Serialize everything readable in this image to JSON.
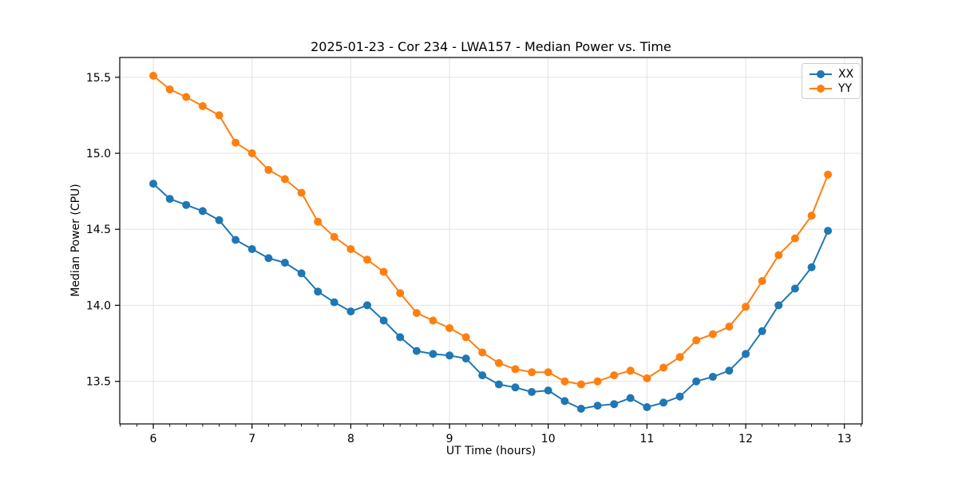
{
  "chart_data": {
    "type": "line",
    "title": "2025-01-23 - Cor 234 - LWA157 - Median Power vs. Time",
    "xlabel": "UT Time (hours)",
    "ylabel": "Median Power (CPU)",
    "xlim": [
      5.66,
      13.18
    ],
    "ylim": [
      13.22,
      15.63
    ],
    "xticks": [
      6,
      7,
      8,
      9,
      10,
      11,
      12,
      13
    ],
    "xtick_labels": [
      "6",
      "7",
      "8",
      "9",
      "10",
      "11",
      "12",
      "13"
    ],
    "yticks": [
      13.5,
      14.0,
      14.5,
      15.0,
      15.5
    ],
    "ytick_labels": [
      "13.5",
      "14.0",
      "14.5",
      "15.0",
      "15.5"
    ],
    "x_minor_divisions": 6,
    "grid": true,
    "grid_color": "#e3e3e3",
    "marker": "circle",
    "legend_position": "upper right",
    "x": [
      6.0,
      6.167,
      6.333,
      6.5,
      6.667,
      6.833,
      7.0,
      7.167,
      7.333,
      7.5,
      7.667,
      7.833,
      8.0,
      8.167,
      8.333,
      8.5,
      8.667,
      8.833,
      9.0,
      9.167,
      9.333,
      9.5,
      9.667,
      9.833,
      10.0,
      10.167,
      10.333,
      10.5,
      10.667,
      10.833,
      11.0,
      11.167,
      11.333,
      11.5,
      11.667,
      11.833,
      12.0,
      12.167,
      12.333,
      12.5,
      12.667,
      12.833
    ],
    "series": [
      {
        "name": "XX",
        "color": "#1f77b4",
        "values": [
          14.8,
          14.7,
          14.66,
          14.62,
          14.56,
          14.43,
          14.37,
          14.31,
          14.28,
          14.21,
          14.09,
          14.02,
          13.96,
          14.0,
          13.9,
          13.79,
          13.7,
          13.68,
          13.67,
          13.65,
          13.54,
          13.48,
          13.46,
          13.43,
          13.44,
          13.37,
          13.32,
          13.34,
          13.35,
          13.39,
          13.33,
          13.36,
          13.4,
          13.5,
          13.53,
          13.57,
          13.68,
          13.83,
          14.0,
          14.11,
          14.25,
          14.49
        ]
      },
      {
        "name": "YY",
        "color": "#ff7f0e",
        "values": [
          15.51,
          15.42,
          15.37,
          15.31,
          15.25,
          15.07,
          15.0,
          14.89,
          14.83,
          14.74,
          14.55,
          14.45,
          14.37,
          14.3,
          14.22,
          14.08,
          13.95,
          13.9,
          13.85,
          13.79,
          13.69,
          13.62,
          13.58,
          13.56,
          13.56,
          13.5,
          13.48,
          13.5,
          13.54,
          13.57,
          13.52,
          13.59,
          13.66,
          13.77,
          13.81,
          13.86,
          13.99,
          14.16,
          14.33,
          14.44,
          14.59,
          14.86
        ]
      }
    ]
  }
}
